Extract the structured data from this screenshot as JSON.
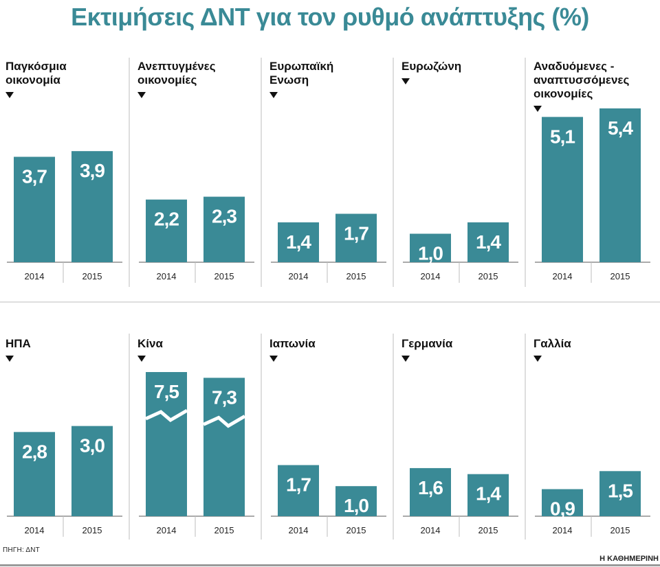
{
  "title": "Εκτιμήσεις ΔΝΤ για τον ρυθμό ανάπτυξης (%)",
  "source": "ΠΗΓΗ: ΔΝΤ",
  "brand": "Η ΚΑΘΗΜΕΡΙΝΗ",
  "colors": {
    "bar": "#3a8a96",
    "title": "#3a8a96",
    "divider": "#bdbdbd"
  },
  "chart_data": {
    "type": "bar",
    "categories": [
      "2014",
      "2015"
    ],
    "panels": [
      {
        "name": "Παγκόσμια οικονομία",
        "title_lines": [
          "Παγκόσμια",
          "οικονομία"
        ],
        "values": [
          3.7,
          3.9
        ],
        "labels": [
          "3,7",
          "3,9"
        ]
      },
      {
        "name": "Ανεπτυγμένες οικονομίες",
        "title_lines": [
          "Ανεπτυγμένες",
          "οικονομίες"
        ],
        "values": [
          2.2,
          2.3
        ],
        "labels": [
          "2,2",
          "2,3"
        ]
      },
      {
        "name": "Ευρωπαϊκή Ενωση",
        "title_lines": [
          "Ευρωπαϊκή",
          "Ενωση"
        ],
        "values": [
          1.4,
          1.7
        ],
        "labels": [
          "1,4",
          "1,7"
        ]
      },
      {
        "name": "Ευρωζώνη",
        "title_lines": [
          "Ευρωζώνη"
        ],
        "values": [
          1.0,
          1.4
        ],
        "labels": [
          "1,0",
          "1,4"
        ]
      },
      {
        "name": "Αναδυόμενες - αναπτυσσόμενες οικονομίες",
        "title_lines": [
          "Αναδυόμενες -",
          "αναπτυσσόμενες",
          "οικονομίες"
        ],
        "values": [
          5.1,
          5.4
        ],
        "labels": [
          "5,1",
          "5,4"
        ]
      },
      {
        "name": "ΗΠΑ",
        "title_lines": [
          "ΗΠΑ"
        ],
        "values": [
          2.8,
          3.0
        ],
        "labels": [
          "2,8",
          "3,0"
        ]
      },
      {
        "name": "Κίνα",
        "title_lines": [
          "Κίνα"
        ],
        "values": [
          7.5,
          7.3
        ],
        "labels": [
          "7,5",
          "7,3"
        ],
        "axis_break": true
      },
      {
        "name": "Ιαπωνία",
        "title_lines": [
          "Ιαπωνία"
        ],
        "values": [
          1.7,
          1.0
        ],
        "labels": [
          "1,7",
          "1,0"
        ]
      },
      {
        "name": "Γερμανία",
        "title_lines": [
          "Γερμανία"
        ],
        "values": [
          1.6,
          1.4
        ],
        "labels": [
          "1,6",
          "1,4"
        ]
      },
      {
        "name": "Γαλλία",
        "title_lines": [
          "Γαλλία"
        ],
        "values": [
          0.9,
          1.5
        ],
        "labels": [
          "0,9",
          "1,5"
        ]
      }
    ]
  }
}
